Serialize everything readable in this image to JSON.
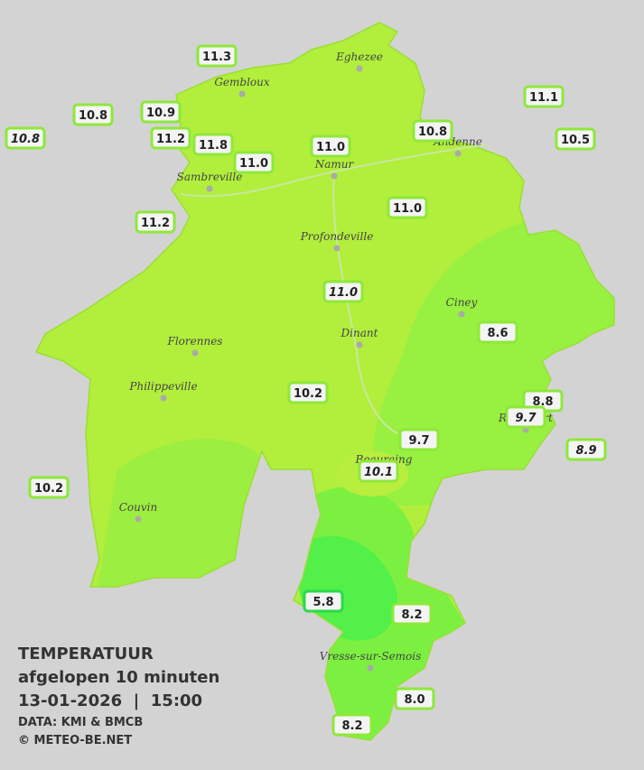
{
  "title": {
    "lines": [
      "TEMPERATUUR",
      "afgelopen 10 minuten",
      "13-01-2026  |  15:00"
    ],
    "credits": [
      "DATA: KMI & BMCB",
      "© METEO-BE.NET"
    ]
  },
  "cities": [
    "Eghezee",
    "Gembloux",
    "Andenne",
    "Namur",
    "Sambreville",
    "Profondeville",
    "Ciney",
    "Dinant",
    "Florennes",
    "Philippeville",
    "Rochefort",
    "Beauraing",
    "Couvin",
    "Vresse-sur-Semois"
  ],
  "stations": [
    "11.3",
    "10.8",
    "10.9",
    "10.8",
    "11.2",
    "11.8",
    "11.0",
    "11.0",
    "10.8",
    "11.1",
    "10.5",
    "11.2",
    "11.0",
    "11.0",
    "8.6",
    "10.2",
    "8.8",
    "9.7",
    "9.7",
    "8.9",
    "10.1",
    "10.2",
    "5.8",
    "8.2",
    "8.0",
    "8.2"
  ]
}
